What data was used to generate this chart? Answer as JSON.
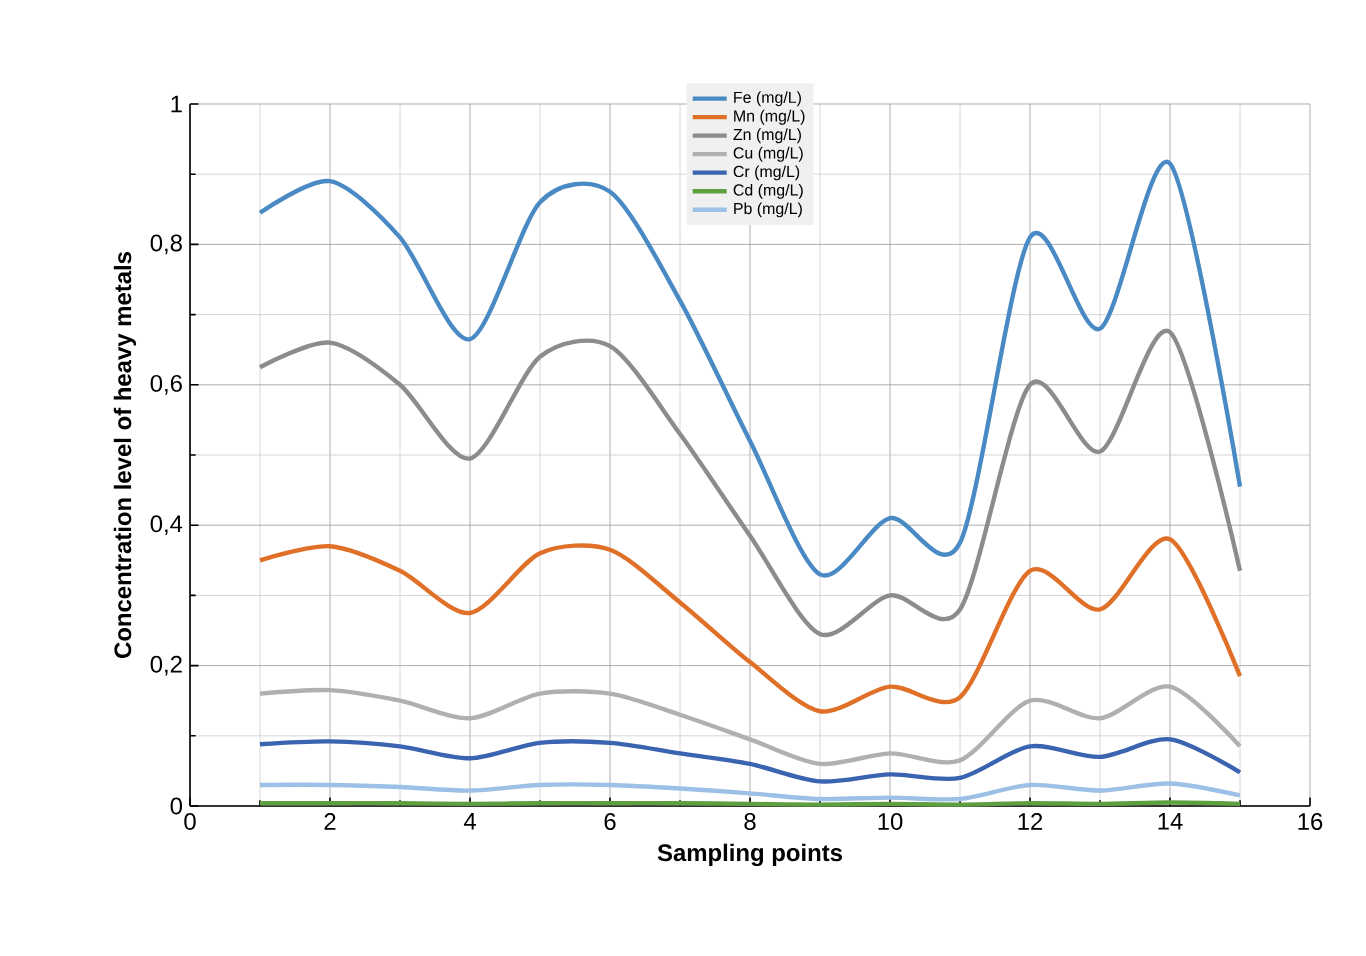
{
  "chart_data": {
    "type": "line",
    "xlabel": "Sampling points",
    "ylabel": "Concentration level of heavy metals",
    "x": [
      1,
      2,
      3,
      4,
      5,
      6,
      7,
      8,
      9,
      10,
      11,
      12,
      13,
      14,
      15
    ],
    "series": [
      {
        "name": "Fe (mg/L)",
        "color": "#4a8ac4",
        "values": [
          0.845,
          0.89,
          0.81,
          0.665,
          0.86,
          0.875,
          0.72,
          0.52,
          0.33,
          0.41,
          0.375,
          0.81,
          0.68,
          0.915,
          0.455
        ]
      },
      {
        "name": "Mn (mg/L)",
        "color": "#e07028",
        "values": [
          0.35,
          0.37,
          0.335,
          0.275,
          0.36,
          0.365,
          0.29,
          0.205,
          0.135,
          0.17,
          0.155,
          0.335,
          0.28,
          0.38,
          0.185
        ]
      },
      {
        "name": "Zn (mg/L)",
        "color": "#8c8c8c",
        "values": [
          0.625,
          0.66,
          0.6,
          0.495,
          0.64,
          0.655,
          0.53,
          0.385,
          0.245,
          0.3,
          0.28,
          0.6,
          0.505,
          0.675,
          0.335
        ]
      },
      {
        "name": "Cu (mg/L)",
        "color": "#b0b0b0",
        "values": [
          0.16,
          0.165,
          0.15,
          0.125,
          0.16,
          0.16,
          0.13,
          0.095,
          0.06,
          0.075,
          0.065,
          0.15,
          0.125,
          0.17,
          0.085
        ]
      },
      {
        "name": "Cr (mg/L)",
        "color": "#3a64b0",
        "values": [
          0.088,
          0.092,
          0.085,
          0.068,
          0.09,
          0.09,
          0.075,
          0.06,
          0.035,
          0.045,
          0.04,
          0.085,
          0.07,
          0.095,
          0.048
        ]
      },
      {
        "name": "Cd (mg/L)",
        "color": "#5ea040",
        "values": [
          0.004,
          0.004,
          0.004,
          0.003,
          0.004,
          0.004,
          0.004,
          0.003,
          0.002,
          0.003,
          0.002,
          0.004,
          0.003,
          0.005,
          0.003
        ]
      },
      {
        "name": "Pb (mg/L)",
        "color": "#9cc0e6",
        "values": [
          0.03,
          0.03,
          0.027,
          0.022,
          0.03,
          0.03,
          0.025,
          0.018,
          0.01,
          0.012,
          0.01,
          0.03,
          0.022,
          0.032,
          0.015
        ]
      }
    ],
    "xlim": [
      0,
      16
    ],
    "ylim": [
      0,
      1
    ],
    "xticks": [
      0,
      2,
      4,
      6,
      8,
      10,
      12,
      14,
      16
    ],
    "yticks": [
      0,
      {
        "value": 0.2,
        "label": "0,2"
      },
      {
        "value": 0.4,
        "label": "0,4"
      },
      {
        "value": 0.6,
        "label": "0,6"
      },
      {
        "value": 0.8,
        "label": "0,8"
      },
      1
    ],
    "grid": true,
    "legend": "top",
    "marker": "none",
    "line_style": "solid"
  }
}
